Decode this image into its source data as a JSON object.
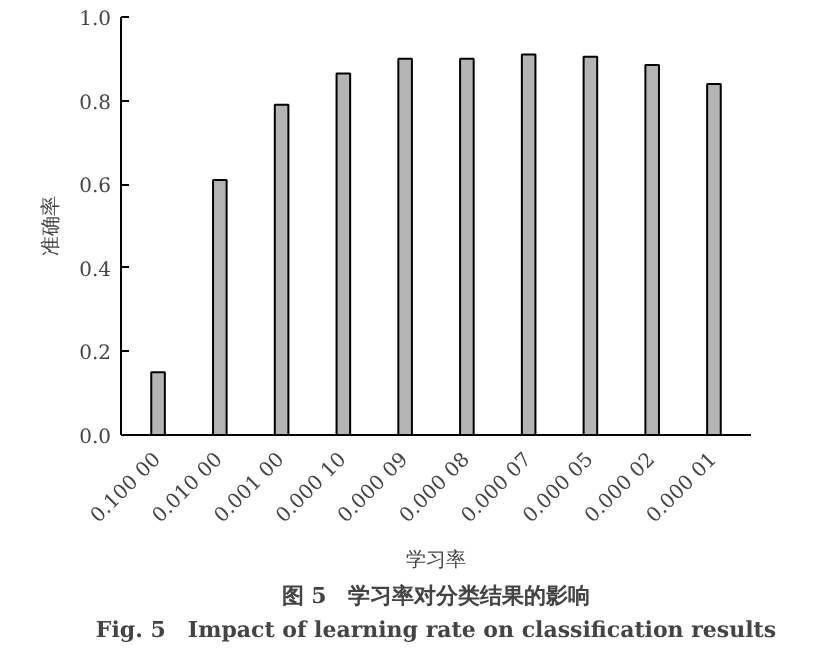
{
  "chart_data": {
    "type": "bar",
    "categories": [
      "0.100 00",
      "0.010 00",
      "0.001 00",
      "0.000 10",
      "0.000 09",
      "0.000 08",
      "0.000 07",
      "0.000 05",
      "0.000 02",
      "0.000 01"
    ],
    "values": [
      0.15,
      0.61,
      0.79,
      0.865,
      0.9,
      0.9,
      0.91,
      0.905,
      0.885,
      0.84
    ],
    "color": "#b4b4b4",
    "xlabel": "学习率",
    "ylabel": "准确率",
    "ylim": [
      0,
      1.0
    ],
    "yticks": [
      {
        "value": 0,
        "label": "0.0"
      },
      0.2,
      0.4,
      0.6,
      0.8,
      {
        "value": 1.0,
        "label": "1.0"
      }
    ],
    "grid": false,
    "annotations": [
      "图 5　学习率对分类结果的影响",
      "Fig. 5　Impact of learning rate on classification results"
    ]
  }
}
